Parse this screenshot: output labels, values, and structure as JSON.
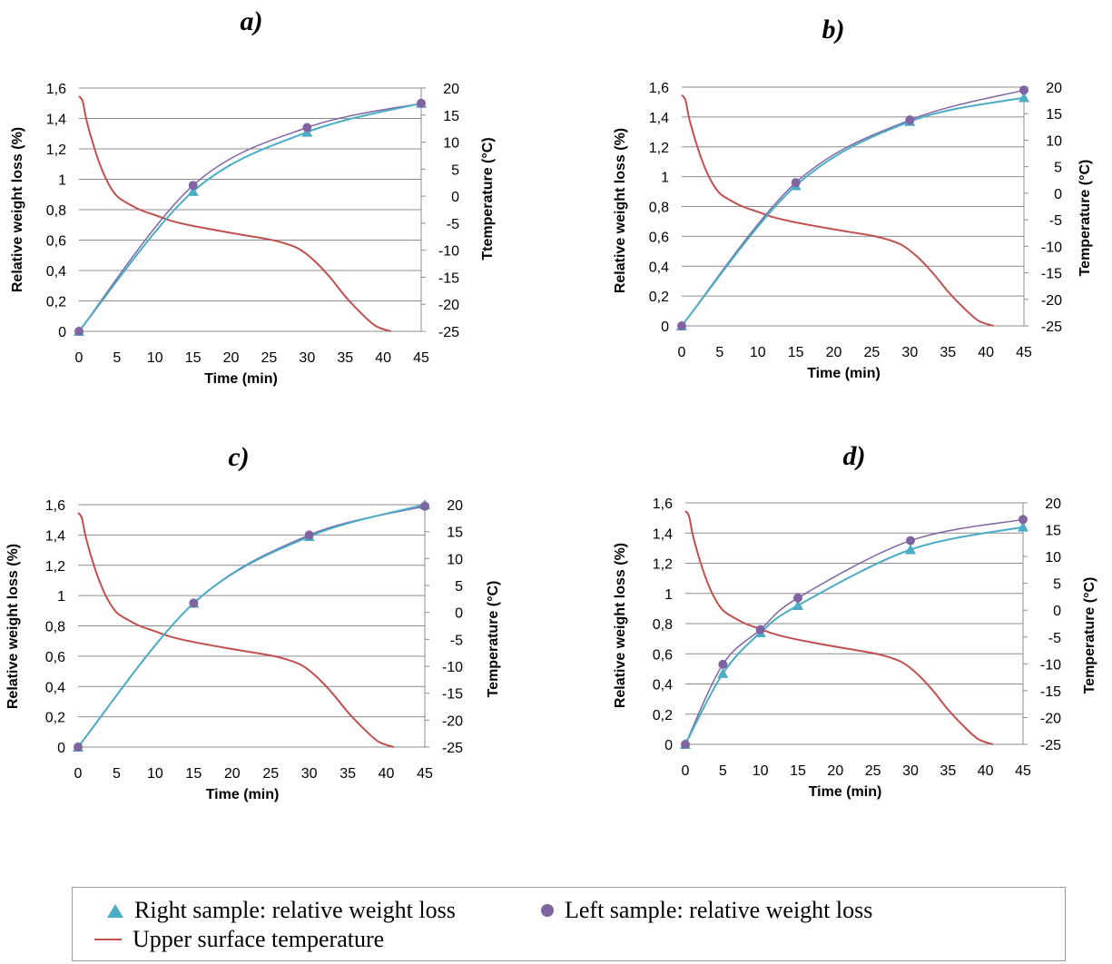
{
  "legend": {
    "right_sample": "Right sample: relative weight loss",
    "left_sample": "Left sample: relative weight loss",
    "temperature": "Upper surface temperature"
  },
  "colors": {
    "right_sample": "#4bacc6",
    "left_sample": "#8064a2",
    "temperature": "#c0504d",
    "grid": "#8c8c8c"
  },
  "chart_data": [
    {
      "panel": "a)",
      "type": "line",
      "xlabel": "Time (min)",
      "ylabel": "Relative weight loss (%)",
      "y2label": "Ttemperature (°C)",
      "xlim": [
        0,
        45
      ],
      "ylim": [
        0,
        1.6
      ],
      "y2lim": [
        -25,
        20
      ],
      "xticks": [
        "0",
        "5",
        "10",
        "15",
        "20",
        "25",
        "30",
        "35",
        "40",
        "45"
      ],
      "yticks": [
        "0",
        "0,2",
        "0,4",
        "0,6",
        "0,8",
        "1",
        "1,2",
        "1,4",
        "1,6"
      ],
      "y2ticks": [
        "-25",
        "-20",
        "-15",
        "-10",
        "-5",
        "0",
        "5",
        "10",
        "15",
        "20"
      ],
      "series": [
        {
          "name": "Right sample: relative weight loss",
          "axis": "left",
          "x": [
            0,
            15,
            30,
            45
          ],
          "y": [
            0,
            0.92,
            1.31,
            1.5
          ]
        },
        {
          "name": "Left sample: relative weight loss",
          "axis": "left",
          "x": [
            0,
            15,
            30,
            45
          ],
          "y": [
            0,
            0.96,
            1.34,
            1.5
          ]
        },
        {
          "name": "Upper surface temperature",
          "axis": "right",
          "x": [
            0,
            0.5,
            1,
            2,
            3,
            4,
            5,
            6,
            8,
            10,
            12,
            15,
            20,
            25,
            27,
            29,
            31,
            33,
            35,
            37,
            39,
            41
          ],
          "y": [
            18.5,
            17.5,
            14,
            9,
            5,
            2,
            0,
            -1,
            -2.5,
            -3.5,
            -4.5,
            -5.5,
            -6.8,
            -8,
            -8.7,
            -9.8,
            -12,
            -15,
            -18.5,
            -21.5,
            -24,
            -25
          ]
        }
      ]
    },
    {
      "panel": "b)",
      "type": "line",
      "xlabel": "Time (min)",
      "ylabel": "Relative weight  loss (%)",
      "y2label": "Temperature (°C)",
      "xlim": [
        0,
        45
      ],
      "ylim": [
        0,
        1.6
      ],
      "y2lim": [
        -25,
        20
      ],
      "xticks": [
        "0",
        "5",
        "10",
        "15",
        "20",
        "25",
        "30",
        "35",
        "40",
        "45"
      ],
      "yticks": [
        "0",
        "0,2",
        "0,4",
        "0,6",
        "0,8",
        "1",
        "1,2",
        "1,4",
        "1,6"
      ],
      "y2ticks": [
        "-25",
        "-20",
        "-15",
        "-10",
        "-5",
        "0",
        "5",
        "10",
        "15",
        "20"
      ],
      "series": [
        {
          "name": "Right sample: relative weight loss",
          "axis": "left",
          "x": [
            0,
            15,
            30,
            45
          ],
          "y": [
            0,
            0.94,
            1.37,
            1.53
          ]
        },
        {
          "name": "Left sample: relative weight loss",
          "axis": "left",
          "x": [
            0,
            15,
            30,
            45
          ],
          "y": [
            0,
            0.96,
            1.38,
            1.58
          ]
        },
        {
          "name": "Upper surface temperature",
          "axis": "right",
          "x": [
            0,
            0.5,
            1,
            2,
            3,
            4,
            5,
            6,
            8,
            10,
            12,
            15,
            20,
            25,
            27,
            29,
            31,
            33,
            35,
            37,
            39,
            41
          ],
          "y": [
            18.5,
            17.5,
            14,
            9,
            5,
            2,
            0,
            -1,
            -2.5,
            -3.5,
            -4.5,
            -5.5,
            -6.8,
            -8,
            -8.7,
            -9.8,
            -12,
            -15,
            -18.5,
            -21.5,
            -24,
            -25
          ]
        }
      ]
    },
    {
      "panel": "c)",
      "type": "line",
      "xlabel": "Time (min)",
      "ylabel": "Relative weight loss  (%)",
      "y2label": "Temperature (°C)",
      "xlim": [
        0,
        45
      ],
      "ylim": [
        0,
        1.6
      ],
      "y2lim": [
        -25,
        20
      ],
      "xticks": [
        "0",
        "5",
        "10",
        "15",
        "20",
        "25",
        "30",
        "35",
        "40",
        "45"
      ],
      "yticks": [
        "0",
        "0,2",
        "0,4",
        "0,6",
        "0,8",
        "1",
        "1,2",
        "1,4",
        "1,6"
      ],
      "y2ticks": [
        "-25",
        "-20",
        "-15",
        "-10",
        "-5",
        "0",
        "5",
        "10",
        "15",
        "20"
      ],
      "series": [
        {
          "name": "Right sample: relative weight loss",
          "axis": "left",
          "x": [
            0,
            15,
            30,
            45
          ],
          "y": [
            0,
            0.95,
            1.39,
            1.6
          ]
        },
        {
          "name": "Left sample: relative weight loss",
          "axis": "left",
          "x": [
            0,
            15,
            30,
            45
          ],
          "y": [
            0,
            0.95,
            1.4,
            1.59
          ]
        },
        {
          "name": "Upper surface temperature",
          "axis": "right",
          "x": [
            0,
            0.5,
            1,
            2,
            3,
            4,
            5,
            6,
            8,
            10,
            12,
            15,
            20,
            25,
            27,
            29,
            31,
            33,
            35,
            37,
            39,
            41
          ],
          "y": [
            18.5,
            17.5,
            14,
            9,
            5,
            2,
            0,
            -1,
            -2.5,
            -3.5,
            -4.5,
            -5.5,
            -6.8,
            -8,
            -8.7,
            -9.8,
            -12,
            -15,
            -18.5,
            -21.5,
            -24,
            -25
          ]
        }
      ]
    },
    {
      "panel": "d)",
      "type": "line",
      "xlabel": "Time (min)",
      "ylabel": "Relative weight loss  (%)",
      "y2label": "Temperature (°C)",
      "xlim": [
        0,
        45
      ],
      "ylim": [
        0,
        1.6
      ],
      "y2lim": [
        -25,
        20
      ],
      "xticks": [
        "0",
        "5",
        "10",
        "15",
        "20",
        "25",
        "30",
        "35",
        "40",
        "45"
      ],
      "yticks": [
        "0",
        "0,2",
        "0,4",
        "0,6",
        "0,8",
        "1",
        "1,2",
        "1,4",
        "1,6"
      ],
      "y2ticks": [
        "-25",
        "-20",
        "-15",
        "-10",
        "-5",
        "0",
        "5",
        "10",
        "15",
        "20"
      ],
      "series": [
        {
          "name": "Right sample: relative weight loss",
          "axis": "left",
          "x": [
            0,
            5,
            10,
            15,
            30,
            45
          ],
          "y": [
            0,
            0.47,
            0.74,
            0.92,
            1.29,
            1.44
          ]
        },
        {
          "name": "Left sample: relative weight loss",
          "axis": "left",
          "x": [
            0,
            5,
            10,
            15,
            30,
            45
          ],
          "y": [
            0,
            0.53,
            0.76,
            0.97,
            1.35,
            1.49
          ]
        },
        {
          "name": "Upper surface temperature",
          "axis": "right",
          "x": [
            0,
            0.5,
            1,
            2,
            3,
            4,
            5,
            6,
            8,
            10,
            12,
            15,
            20,
            25,
            27,
            29,
            31,
            33,
            35,
            37,
            39,
            41
          ],
          "y": [
            18.5,
            17.5,
            14,
            9,
            5,
            2,
            0,
            -1,
            -2.5,
            -3.5,
            -4.5,
            -5.5,
            -6.8,
            -8,
            -8.7,
            -9.8,
            -12,
            -15,
            -18.5,
            -21.5,
            -24,
            -25
          ]
        }
      ]
    }
  ]
}
